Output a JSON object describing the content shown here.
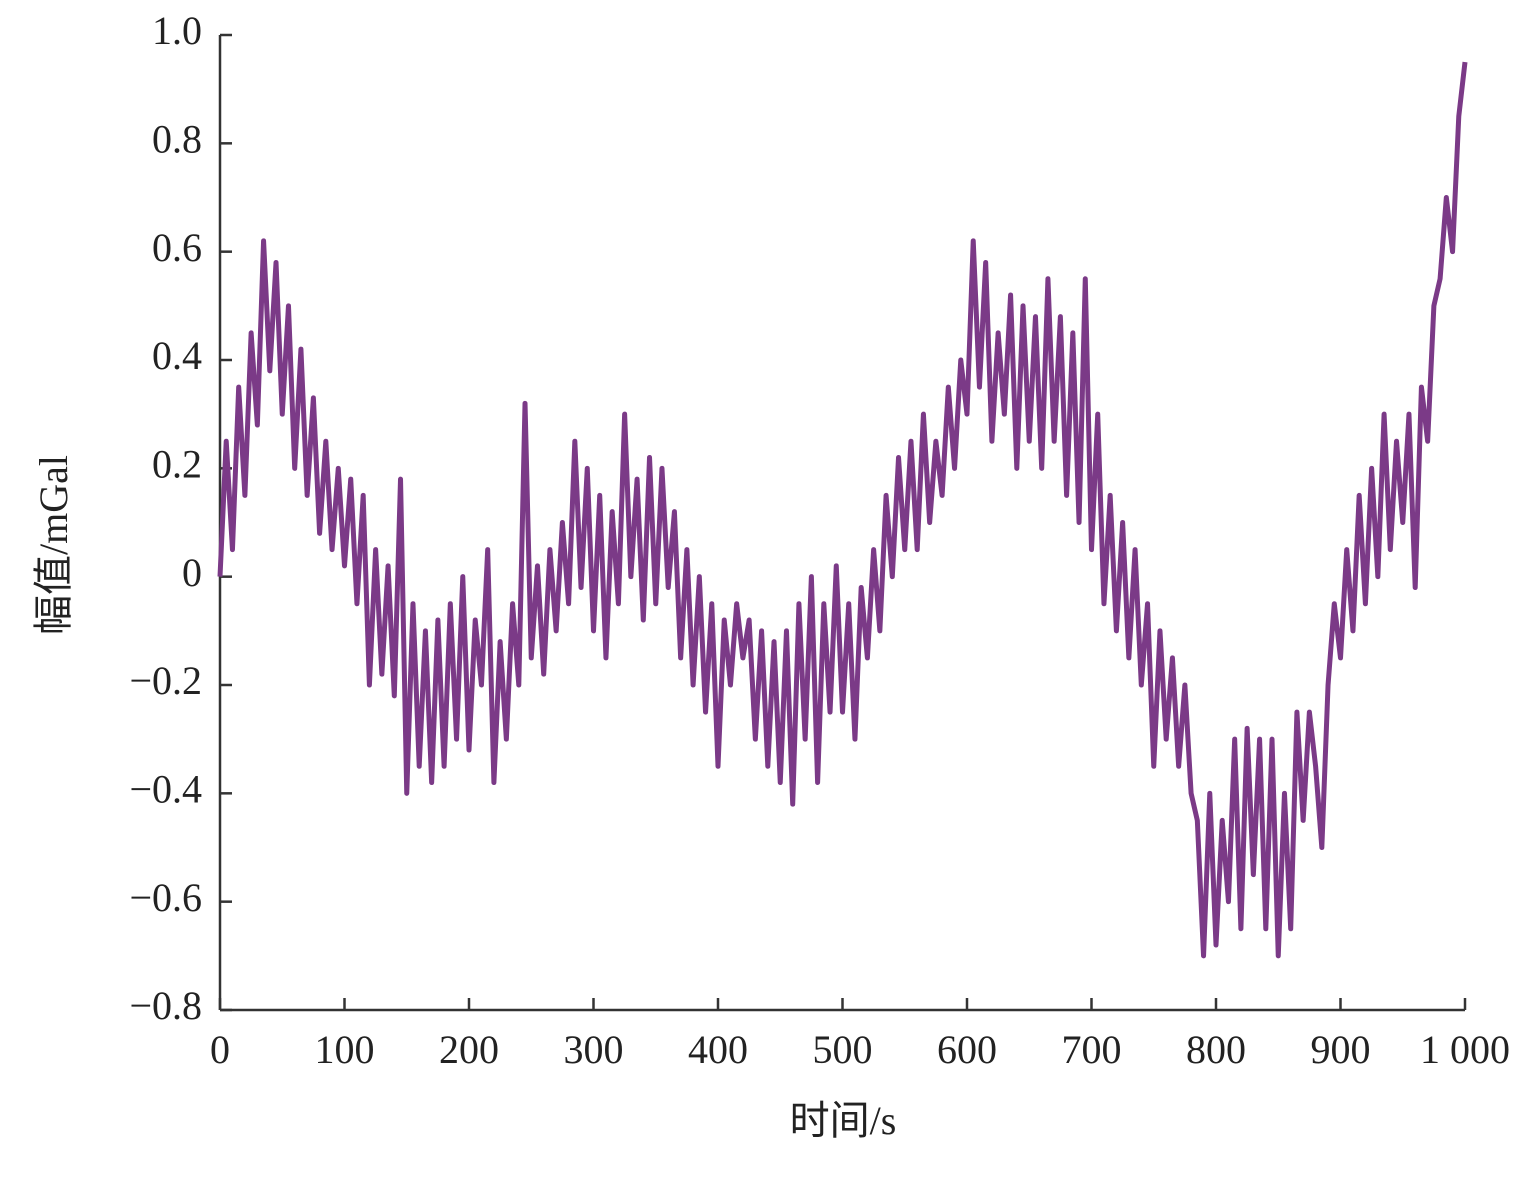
{
  "chart_data": {
    "type": "line",
    "xlabel": "时间/s",
    "ylabel": "幅值/mGal",
    "xlim": [
      0,
      1000
    ],
    "ylim": [
      -0.8,
      1.0
    ],
    "xticks": [
      0,
      100,
      200,
      300,
      400,
      500,
      600,
      700,
      800,
      900,
      {
        "value": 1000,
        "label": "1 000"
      }
    ],
    "yticks": [
      {
        "value": -0.8,
        "label": "−0.8"
      },
      {
        "value": -0.6,
        "label": "−0.6"
      },
      {
        "value": -0.4,
        "label": "−0.4"
      },
      {
        "value": -0.2,
        "label": "−0.2"
      },
      0,
      0.2,
      0.4,
      0.6,
      0.8,
      {
        "value": 1,
        "label": "1.0"
      }
    ],
    "x": [
      0,
      5,
      10,
      15,
      20,
      25,
      30,
      35,
      40,
      45,
      50,
      55,
      60,
      65,
      70,
      75,
      80,
      85,
      90,
      95,
      100,
      105,
      110,
      115,
      120,
      125,
      130,
      135,
      140,
      145,
      150,
      155,
      160,
      165,
      170,
      175,
      180,
      185,
      190,
      195,
      200,
      205,
      210,
      215,
      220,
      225,
      230,
      235,
      240,
      245,
      250,
      255,
      260,
      265,
      270,
      275,
      280,
      285,
      290,
      295,
      300,
      305,
      310,
      315,
      320,
      325,
      330,
      335,
      340,
      345,
      350,
      355,
      360,
      365,
      370,
      375,
      380,
      385,
      390,
      395,
      400,
      405,
      410,
      415,
      420,
      425,
      430,
      435,
      440,
      445,
      450,
      455,
      460,
      465,
      470,
      475,
      480,
      485,
      490,
      495,
      500,
      505,
      510,
      515,
      520,
      525,
      530,
      535,
      540,
      545,
      550,
      555,
      560,
      565,
      570,
      575,
      580,
      585,
      590,
      595,
      600,
      605,
      610,
      615,
      620,
      625,
      630,
      635,
      640,
      645,
      650,
      655,
      660,
      665,
      670,
      675,
      680,
      685,
      690,
      695,
      700,
      705,
      710,
      715,
      720,
      725,
      730,
      735,
      740,
      745,
      750,
      755,
      760,
      765,
      770,
      775,
      780,
      785,
      790,
      795,
      800,
      805,
      810,
      815,
      820,
      825,
      830,
      835,
      840,
      845,
      850,
      855,
      860,
      865,
      870,
      875,
      880,
      885,
      890,
      895,
      900,
      905,
      910,
      915,
      920,
      925,
      930,
      935,
      940,
      945,
      950,
      955,
      960,
      965,
      970,
      975,
      980,
      985,
      990,
      995,
      1000
    ],
    "series": [
      {
        "color": "#7b3a87",
        "values": [
          0.0,
          0.25,
          0.05,
          0.35,
          0.15,
          0.45,
          0.28,
          0.62,
          0.38,
          0.58,
          0.3,
          0.5,
          0.2,
          0.42,
          0.15,
          0.33,
          0.08,
          0.25,
          0.05,
          0.2,
          0.02,
          0.18,
          -0.05,
          0.15,
          -0.2,
          0.05,
          -0.18,
          0.02,
          -0.22,
          0.18,
          -0.4,
          -0.05,
          -0.35,
          -0.1,
          -0.38,
          -0.08,
          -0.35,
          -0.05,
          -0.3,
          0.0,
          -0.32,
          -0.08,
          -0.2,
          0.05,
          -0.38,
          -0.12,
          -0.3,
          -0.05,
          -0.2,
          0.32,
          -0.15,
          0.02,
          -0.18,
          0.05,
          -0.1,
          0.1,
          -0.05,
          0.25,
          -0.02,
          0.2,
          -0.1,
          0.15,
          -0.15,
          0.12,
          -0.05,
          0.3,
          0.0,
          0.18,
          -0.08,
          0.22,
          -0.05,
          0.2,
          -0.02,
          0.12,
          -0.15,
          0.05,
          -0.2,
          0.0,
          -0.25,
          -0.05,
          -0.35,
          -0.08,
          -0.2,
          -0.05,
          -0.15,
          -0.08,
          -0.3,
          -0.1,
          -0.35,
          -0.12,
          -0.38,
          -0.1,
          -0.42,
          -0.05,
          -0.3,
          0.0,
          -0.38,
          -0.05,
          -0.25,
          0.02,
          -0.25,
          -0.05,
          -0.3,
          -0.02,
          -0.15,
          0.05,
          -0.1,
          0.15,
          0.0,
          0.22,
          0.05,
          0.25,
          0.05,
          0.3,
          0.1,
          0.25,
          0.15,
          0.35,
          0.2,
          0.4,
          0.3,
          0.62,
          0.35,
          0.58,
          0.25,
          0.45,
          0.3,
          0.52,
          0.2,
          0.5,
          0.25,
          0.48,
          0.2,
          0.55,
          0.25,
          0.48,
          0.15,
          0.45,
          0.1,
          0.55,
          0.05,
          0.3,
          -0.05,
          0.15,
          -0.1,
          0.1,
          -0.15,
          0.05,
          -0.2,
          -0.05,
          -0.35,
          -0.1,
          -0.3,
          -0.15,
          -0.35,
          -0.2,
          -0.4,
          -0.45,
          -0.7,
          -0.4,
          -0.68,
          -0.45,
          -0.6,
          -0.3,
          -0.65,
          -0.28,
          -0.55,
          -0.3,
          -0.65,
          -0.3,
          -0.7,
          -0.4,
          -0.65,
          -0.25,
          -0.45,
          -0.25,
          -0.35,
          -0.5,
          -0.2,
          -0.05,
          -0.15,
          0.05,
          -0.1,
          0.15,
          -0.05,
          0.2,
          0.0,
          0.3,
          0.05,
          0.25,
          0.1,
          0.3,
          -0.02,
          0.35,
          0.25,
          0.5,
          0.55,
          0.7,
          0.6,
          0.85,
          0.95
        ]
      }
    ]
  }
}
